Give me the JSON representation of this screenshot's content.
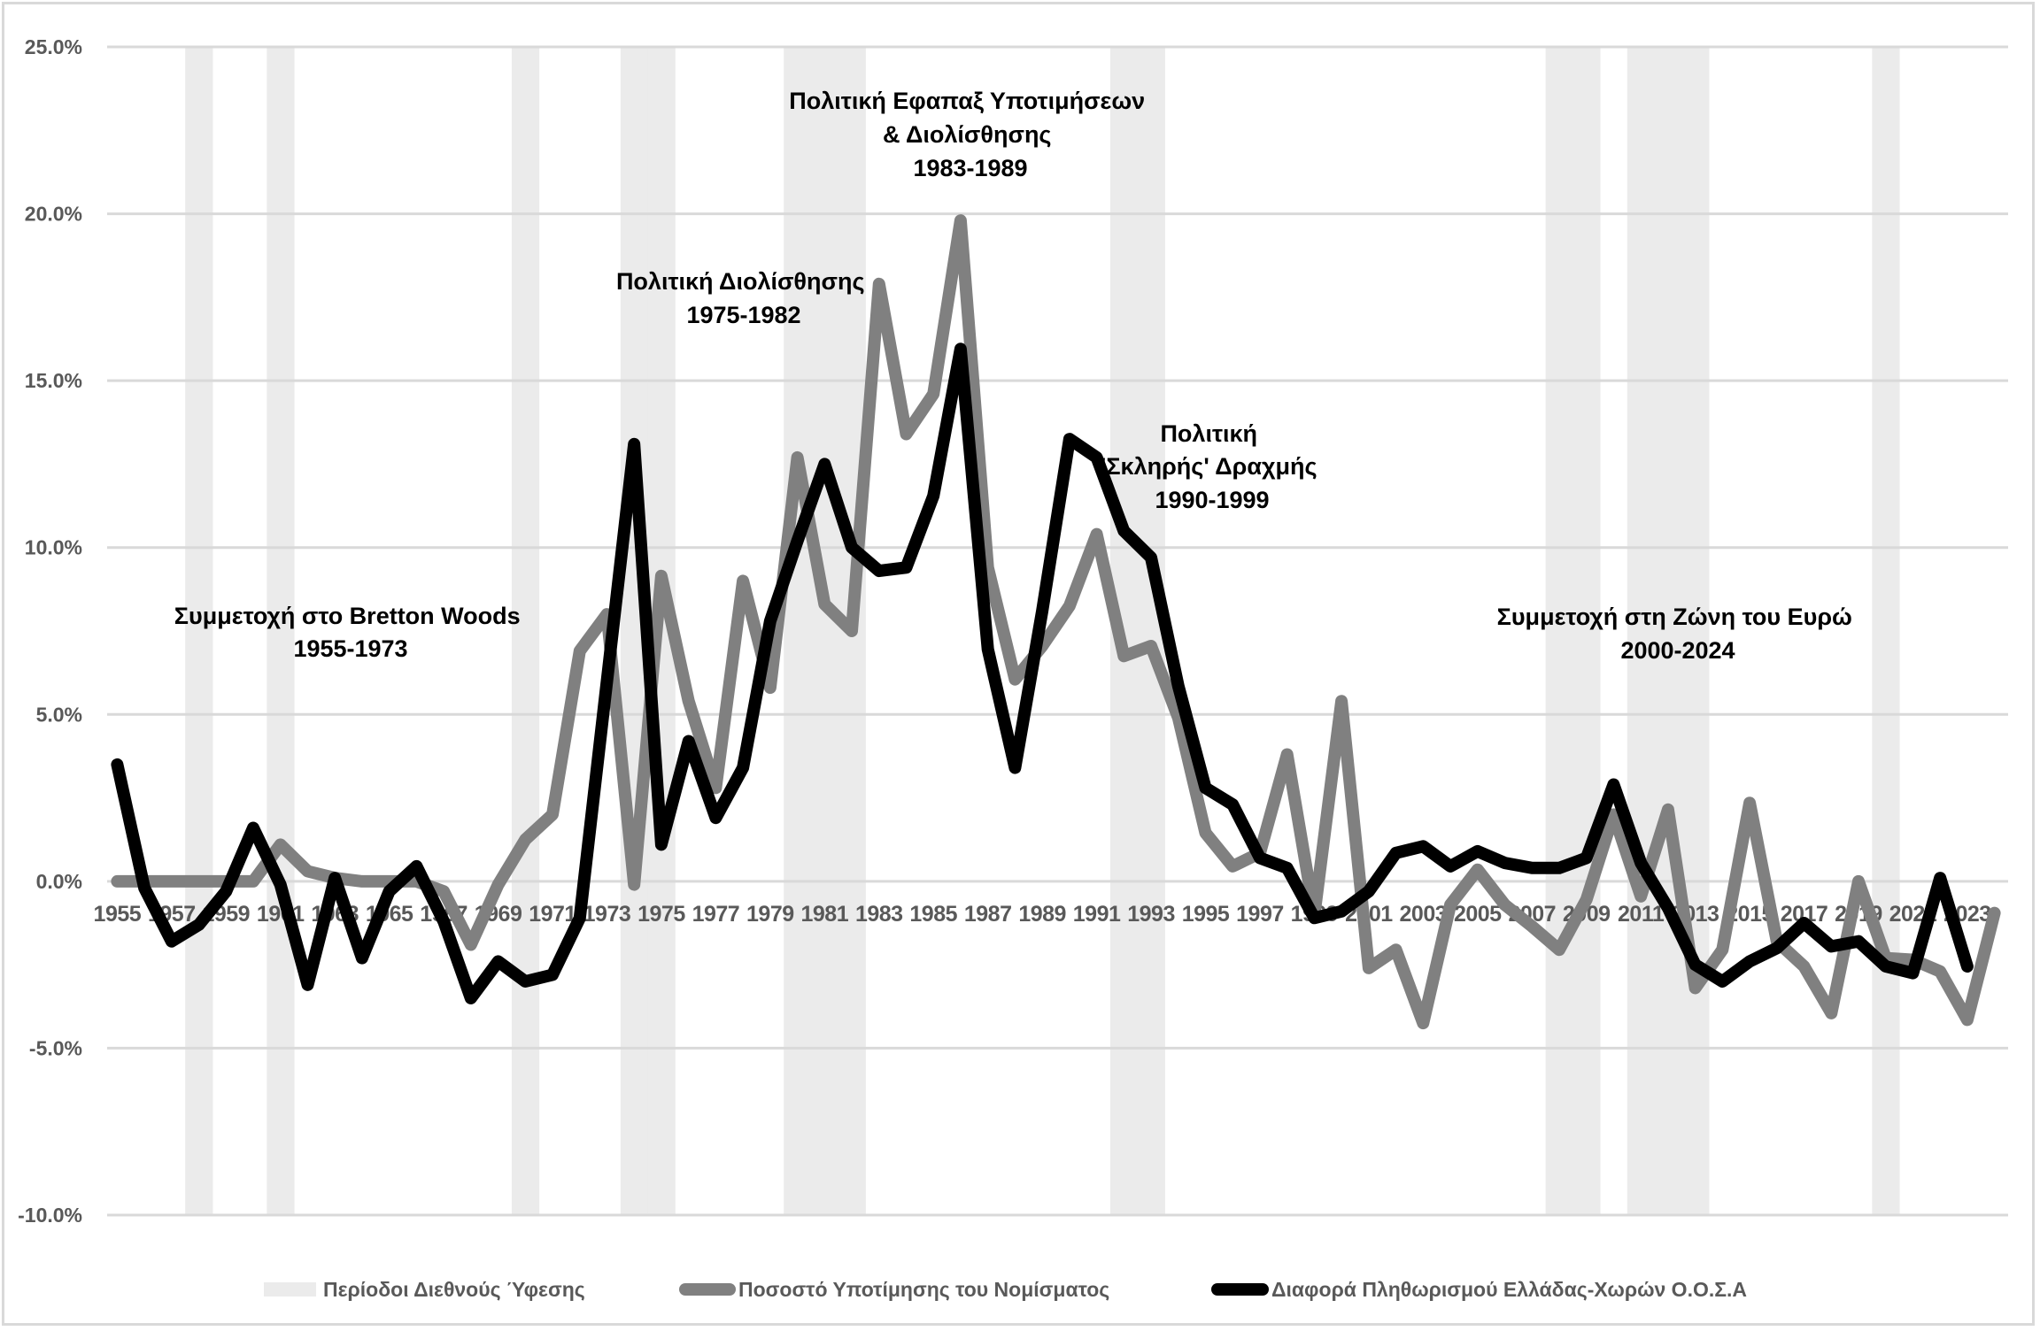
{
  "chart_data": {
    "type": "line",
    "title": "",
    "xlabel": "",
    "ylabel": "",
    "ylim": [
      -10,
      25
    ],
    "yticks": [
      25,
      20,
      15,
      10,
      5,
      0,
      -5,
      -10
    ],
    "ytick_labels": [
      "25.0%",
      "20.0%",
      "15.0%",
      "10.0%",
      "5.0%",
      "0.0%",
      "-5.0%",
      "-10.0%"
    ],
    "x": [
      1955,
      1956,
      1957,
      1958,
      1959,
      1960,
      1961,
      1962,
      1963,
      1964,
      1965,
      1966,
      1967,
      1968,
      1969,
      1970,
      1971,
      1972,
      1973,
      1974,
      1975,
      1976,
      1977,
      1978,
      1979,
      1980,
      1981,
      1982,
      1983,
      1984,
      1985,
      1986,
      1987,
      1988,
      1989,
      1990,
      1991,
      1992,
      1993,
      1994,
      1995,
      1996,
      1997,
      1998,
      1999,
      2000,
      2001,
      2002,
      2003,
      2004,
      2005,
      2006,
      2007,
      2008,
      2009,
      2010,
      2011,
      2012,
      2013,
      2014,
      2015,
      2016,
      2017,
      2018,
      2019,
      2020,
      2021,
      2022,
      2023,
      2024
    ],
    "xtick_labels": [
      "1955",
      "1957",
      "1959",
      "1961",
      "1963",
      "1965",
      "1967",
      "1969",
      "1971",
      "1973",
      "1975",
      "1977",
      "1979",
      "1981",
      "1983",
      "1985",
      "1987",
      "1989",
      "1991",
      "1993",
      "1995",
      "1997",
      "1999",
      "2001",
      "2003",
      "2005",
      "2007",
      "2009",
      "2011",
      "2013",
      "2015",
      "2017",
      "2019",
      "2021",
      "2023"
    ],
    "grid": true,
    "legend_position": "bottom",
    "recession_years": [
      1958,
      1961,
      1970,
      1974,
      1975,
      1980,
      1981,
      1982,
      1992,
      1993,
      2008,
      2009,
      2011,
      2012,
      2013,
      2020
    ],
    "series": [
      {
        "name": "Ποσοστό Υποτίμησης του Νομίσματος",
        "color": "#808080",
        "values": [
          0,
          0,
          0,
          0,
          0,
          0,
          1.1,
          0.3,
          0.1,
          0,
          0,
          0,
          -0.3,
          -1.9,
          -0.1,
          1.25,
          2.0,
          6.9,
          8.0,
          -0.1,
          9.15,
          5.4,
          2.8,
          9.0,
          5.8,
          12.7,
          8.3,
          7.5,
          17.9,
          13.4,
          14.6,
          19.8,
          9.4,
          6.05,
          7.05,
          8.25,
          10.4,
          6.75,
          7.05,
          4.9,
          1.45,
          0.45,
          0.85,
          3.8,
          -1.0,
          5.4,
          -2.6,
          -2.05,
          -4.25,
          -0.7,
          0.35,
          -0.7,
          -1.35,
          -2.05,
          -0.55,
          2.0,
          -0.45,
          2.15,
          -3.2,
          -2.05,
          2.35,
          -1.8,
          -2.55,
          -3.95,
          0.0,
          -2.3,
          -2.35,
          -2.7,
          -4.15,
          -0.95
        ]
      },
      {
        "name": "Διαφορά Πληθωρισμού Ελλάδας-Χωρών Ο.Ο.Σ.Α",
        "color": "#000000",
        "values": [
          3.5,
          -0.2,
          -1.8,
          -1.3,
          -0.3,
          1.6,
          -0.1,
          -3.1,
          0.1,
          -2.3,
          -0.3,
          0.45,
          -1.2,
          -3.5,
          -2.4,
          -3.0,
          -2.8,
          -1.1,
          6.0,
          13.1,
          1.1,
          4.2,
          1.9,
          3.4,
          7.8,
          10.2,
          12.5,
          10.0,
          9.3,
          9.4,
          11.55,
          15.95,
          6.95,
          3.4,
          8.1,
          13.25,
          12.7,
          10.5,
          9.7,
          5.85,
          2.8,
          2.3,
          0.7,
          0.4,
          -1.1,
          -0.9,
          -0.3,
          0.85,
          1.05,
          0.45,
          0.9,
          0.55,
          0.4,
          0.4,
          0.7,
          2.9,
          0.55,
          -0.8,
          -2.5,
          -3.0,
          -2.4,
          -2.0,
          -1.25,
          -1.95,
          -1.8,
          -2.55,
          -2.75,
          0.1,
          -2.55,
          null
        ]
      }
    ],
    "legend": [
      {
        "label": "Περίοδοι Διεθνούς Ύφεσης",
        "color": "#ebebeb",
        "kind": "area"
      },
      {
        "label": "Ποσοστό Υποτίμησης του Νομίσματος",
        "color": "#808080",
        "kind": "line"
      },
      {
        "label": "Διαφορά Πληθωρισμού Ελλάδας-Χωρών Ο.Ο.Σ.Α",
        "color": "#000000",
        "kind": "line"
      }
    ],
    "annotations": [
      {
        "lines": [
          "Συμμετοχή στο Bretton Woods",
          "1955-1973"
        ]
      },
      {
        "lines": [
          "Πολιτική Διολίσθησης",
          "1975-1982"
        ]
      },
      {
        "lines": [
          "Πολιτική Εφαπαξ Υποτιμήσεων",
          "& Διολίσθησης",
          "1983-1989"
        ]
      },
      {
        "lines": [
          "Πολιτική",
          "'Σκληρής' Δραχμής",
          "1990-1999"
        ]
      },
      {
        "lines": [
          "Συμμετοχή στη Ζώνη του Ευρώ",
          "2000-2024"
        ]
      }
    ]
  },
  "colors": {
    "gridline": "#d9d9d9",
    "band": "#ebebeb",
    "axis_text": "#595959"
  }
}
